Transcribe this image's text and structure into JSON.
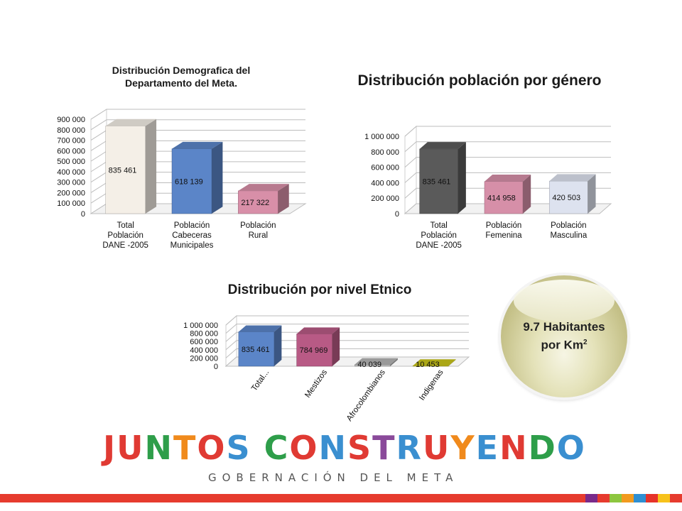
{
  "chart_data": [
    {
      "type": "bar",
      "title": "Distribución Demografica del Departamento del Meta.",
      "categories": [
        "Total Población DANE -2005",
        "Población Cabeceras Municipales",
        "Población Rural"
      ],
      "category_lines": [
        [
          "Total",
          "Población",
          "DANE -2005"
        ],
        [
          "Población",
          "Cabeceras",
          "Municipales"
        ],
        [
          "Población",
          "Rural"
        ]
      ],
      "values": [
        835461,
        618139,
        217322
      ],
      "value_labels": [
        "835 461",
        "618 139",
        "217 322"
      ],
      "bar_colors": [
        "#f4efe7",
        "#5b85c8",
        "#d88fa8"
      ],
      "ylim": [
        0,
        900000
      ],
      "yticks": [
        "0",
        "100 000",
        "200 000",
        "300 000",
        "400 000",
        "500 000",
        "600 000",
        "700 000",
        "800 000",
        "900 000"
      ],
      "style": "3d-column",
      "grid": true
    },
    {
      "type": "bar",
      "title": "Distribución población por género",
      "categories": [
        "Total Población DANE -2005",
        "Población Femenina",
        "Población Masculina"
      ],
      "category_lines": [
        [
          "Total",
          "Población",
          "DANE -2005"
        ],
        [
          "Población",
          "Femenina"
        ],
        [
          "Población",
          "Masculina"
        ]
      ],
      "values": [
        835461,
        414958,
        420503
      ],
      "value_labels": [
        "835 461",
        "414 958",
        "420 503"
      ],
      "bar_colors": [
        "#5a5a5a",
        "#d68fa8",
        "#dde2ef"
      ],
      "ylim": [
        0,
        1000000
      ],
      "yticks": [
        "0",
        "200 000",
        "400 000",
        "600 000",
        "800 000",
        "1 000 000"
      ],
      "style": "3d-column",
      "grid": true
    },
    {
      "type": "bar",
      "title": "Distribución por nivel Etnico",
      "categories": [
        "Total...",
        "Mestizos",
        "Afrocolombianos",
        "Indigenas"
      ],
      "values": [
        835461,
        784969,
        40039,
        10453
      ],
      "value_labels": [
        "835 461",
        "784 969",
        "40 039",
        "10 453"
      ],
      "bar_colors": [
        "#5b85c8",
        "#b85a85",
        "#b5b5b5",
        "#c9c41a"
      ],
      "ylim": [
        0,
        1000000
      ],
      "yticks": [
        "0",
        "200 000",
        "400 000",
        "600 000",
        "800 000",
        "1 000 000"
      ],
      "style": "3d-column",
      "grid": true
    }
  ],
  "density": {
    "text": "9.7 Habitantes",
    "unit": "por Km",
    "superscript": "2"
  },
  "logo": {
    "word": [
      {
        "t": "J",
        "c": "#e03a33"
      },
      {
        "t": "U",
        "c": "#e03a33"
      },
      {
        "t": "N",
        "c": "#2e9e4a"
      },
      {
        "t": "T",
        "c": "#f08a1c"
      },
      {
        "t": "O",
        "c": "#e03a33"
      },
      {
        "t": "S",
        "c": "#3a8fd0"
      },
      {
        "t": " ",
        "c": "#000000"
      },
      {
        "t": "C",
        "c": "#2e9e4a"
      },
      {
        "t": "O",
        "c": "#e03a33"
      },
      {
        "t": "N",
        "c": "#3a8fd0"
      },
      {
        "t": "S",
        "c": "#e03a33"
      },
      {
        "t": "T",
        "c": "#8a4a9a"
      },
      {
        "t": "R",
        "c": "#3a8fd0"
      },
      {
        "t": "U",
        "c": "#e03a33"
      },
      {
        "t": "Y",
        "c": "#f08a1c"
      },
      {
        "t": "E",
        "c": "#3a8fd0"
      },
      {
        "t": "N",
        "c": "#e03a33"
      },
      {
        "t": "D",
        "c": "#2e9e4a"
      },
      {
        "t": "O",
        "c": "#3a8fd0"
      }
    ],
    "subtitle": "GOBERNACIÓN DEL META"
  },
  "footer": {
    "square_colors": [
      "#7a2a8a",
      "#e63b2e",
      "#8dc63f",
      "#f29a1e",
      "#2f8fd2",
      "#e6332a",
      "#f7c21b",
      "#e63b2e"
    ]
  }
}
